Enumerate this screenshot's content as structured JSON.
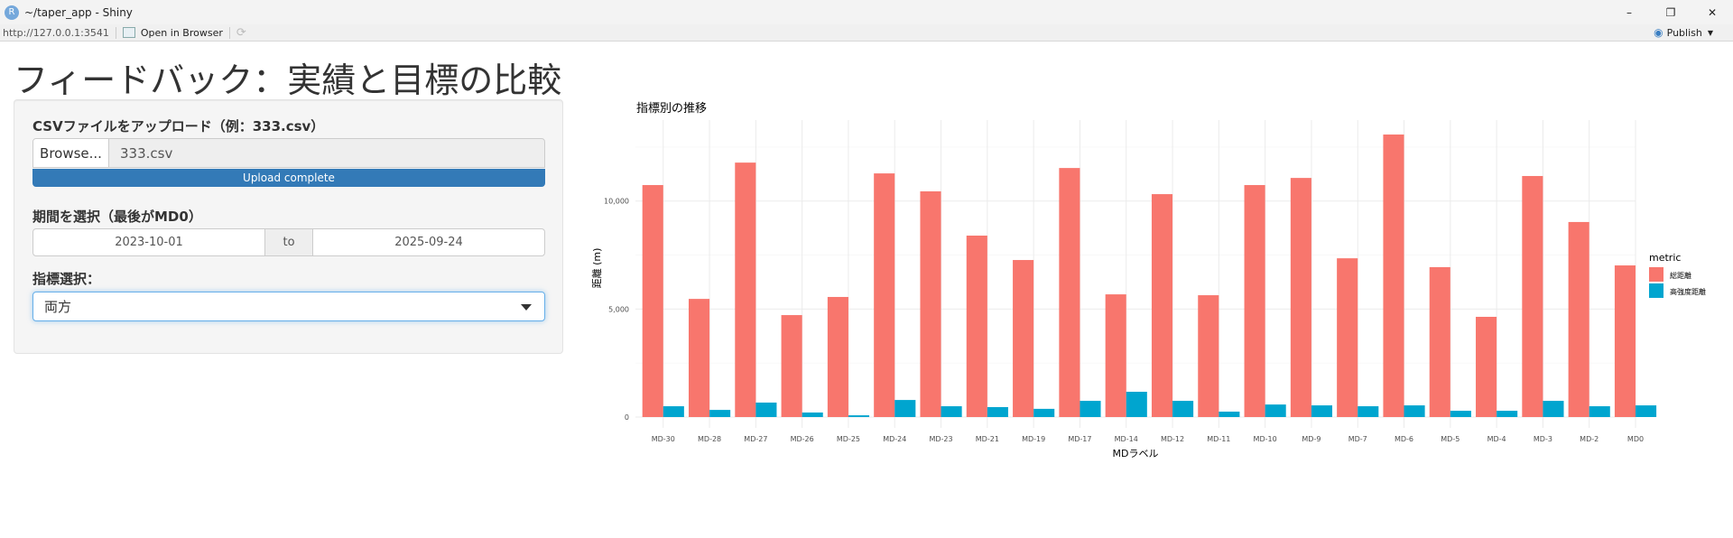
{
  "window": {
    "title": "~/taper_app - Shiny",
    "icon": "R",
    "minimize": "–",
    "maximize": "❐",
    "close": "✕"
  },
  "addressbar": {
    "url": "http://127.0.0.1:3541",
    "open_in_browser": "Open in Browser",
    "refresh_icon": "⟳",
    "publish": "Publish",
    "publish_icon": "publish-icon"
  },
  "page": {
    "title": "フィードバック：実績と目標の比較"
  },
  "sidebar": {
    "upload_label": "CSVファイルをアップロード（例：333.csv）",
    "browse_button": "Browse...",
    "file_name": "333.csv",
    "upload_status": "Upload complete",
    "upload_progress": 100,
    "period_label": "期間を選択（最後がMD0）",
    "date_start": "2023-10-01",
    "date_sep": "to",
    "date_end": "2025-09-24",
    "metric_label": "指標選択：",
    "metric_value": "両方"
  },
  "chart_data": {
    "type": "bar",
    "title": "指標別の推移",
    "xlabel": "MDラベル",
    "ylabel": "距離 (m)",
    "ylim": [
      0,
      13750
    ],
    "yticks": [
      0,
      5000,
      10000
    ],
    "ytick_labels": [
      "0",
      "5,000",
      "10,000"
    ],
    "grid": true,
    "legend": {
      "title": "metric",
      "position": "right"
    },
    "categories": [
      "MD-30",
      "MD-28",
      "MD-27",
      "MD-26",
      "MD-25",
      "MD-24",
      "MD-23",
      "MD-21",
      "MD-19",
      "MD-17",
      "MD-14",
      "MD-12",
      "MD-11",
      "MD-10",
      "MD-9",
      "MD-7",
      "MD-6",
      "MD-5",
      "MD-4",
      "MD-3",
      "MD-2",
      "MD0"
    ],
    "series": [
      {
        "name": "総距離",
        "color": "#F8766D",
        "values": [
          10740,
          5470,
          11780,
          4720,
          5560,
          11280,
          10450,
          8400,
          7270,
          11530,
          5680,
          10320,
          5640,
          10740,
          11070,
          7350,
          13080,
          6940,
          4640,
          11160,
          9030,
          7020
        ]
      },
      {
        "name": "高強度距離",
        "color": "#00A5CF",
        "values": [
          500,
          330,
          670,
          210,
          80,
          790,
          500,
          460,
          380,
          750,
          1170,
          750,
          250,
          580,
          540,
          500,
          540,
          290,
          290,
          750,
          500,
          540
        ]
      }
    ]
  }
}
